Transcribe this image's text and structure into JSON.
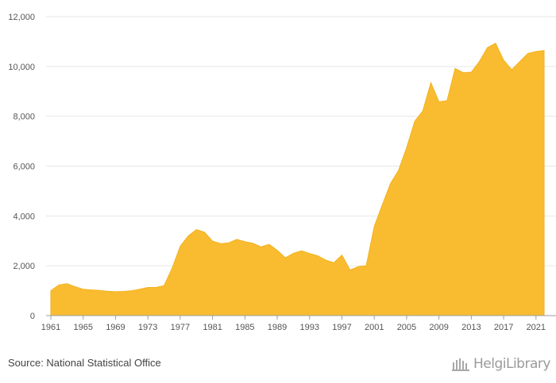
{
  "chart_data": {
    "type": "area",
    "title": "",
    "xlabel": "",
    "ylabel": "",
    "xlim": [
      1961,
      2022
    ],
    "ylim": [
      0,
      12000
    ],
    "y_ticks": [
      0,
      2000,
      4000,
      6000,
      8000,
      10000,
      12000
    ],
    "y_tick_labels": [
      "0",
      "2,000",
      "4,000",
      "6,000",
      "8,000",
      "10,000",
      "12,000"
    ],
    "x_ticks": [
      1961,
      1965,
      1969,
      1973,
      1977,
      1981,
      1985,
      1989,
      1993,
      1997,
      2001,
      2005,
      2009,
      2013,
      2017,
      2021
    ],
    "x_tick_labels": [
      "1961",
      "1965",
      "1969",
      "1973",
      "1977",
      "1981",
      "1985",
      "1989",
      "1993",
      "1997",
      "2001",
      "2005",
      "2009",
      "2013",
      "2017",
      "2021"
    ],
    "grid": true,
    "color": "#F9BC31",
    "x": [
      1961,
      1962,
      1963,
      1964,
      1965,
      1966,
      1967,
      1968,
      1969,
      1970,
      1971,
      1972,
      1973,
      1974,
      1975,
      1976,
      1977,
      1978,
      1979,
      1980,
      1981,
      1982,
      1983,
      1984,
      1985,
      1986,
      1987,
      1988,
      1989,
      1990,
      1991,
      1992,
      1993,
      1994,
      1995,
      1996,
      1997,
      1998,
      1999,
      2000,
      2001,
      2002,
      2003,
      2004,
      2005,
      2006,
      2007,
      2008,
      2009,
      2010,
      2011,
      2012,
      2013,
      2014,
      2015,
      2016,
      2017,
      2018,
      2019,
      2020,
      2021,
      2022
    ],
    "values": [
      1000,
      1230,
      1280,
      1160,
      1060,
      1030,
      1010,
      980,
      960,
      970,
      1000,
      1060,
      1130,
      1130,
      1200,
      1900,
      2780,
      3200,
      3450,
      3350,
      2990,
      2890,
      2920,
      3060,
      2970,
      2900,
      2760,
      2860,
      2620,
      2320,
      2500,
      2600,
      2490,
      2400,
      2230,
      2120,
      2430,
      1830,
      1960,
      2000,
      3580,
      4450,
      5300,
      5830,
      6740,
      7800,
      8220,
      9350,
      8580,
      8630,
      9920,
      9750,
      9770,
      10200,
      10760,
      10930,
      10250,
      9870,
      10200,
      10520,
      10600,
      10640
    ]
  },
  "footer": {
    "source": "Source: National Statistical Office",
    "brand": "HelgiLibrary"
  },
  "brand_icon": "library-columns-icon"
}
